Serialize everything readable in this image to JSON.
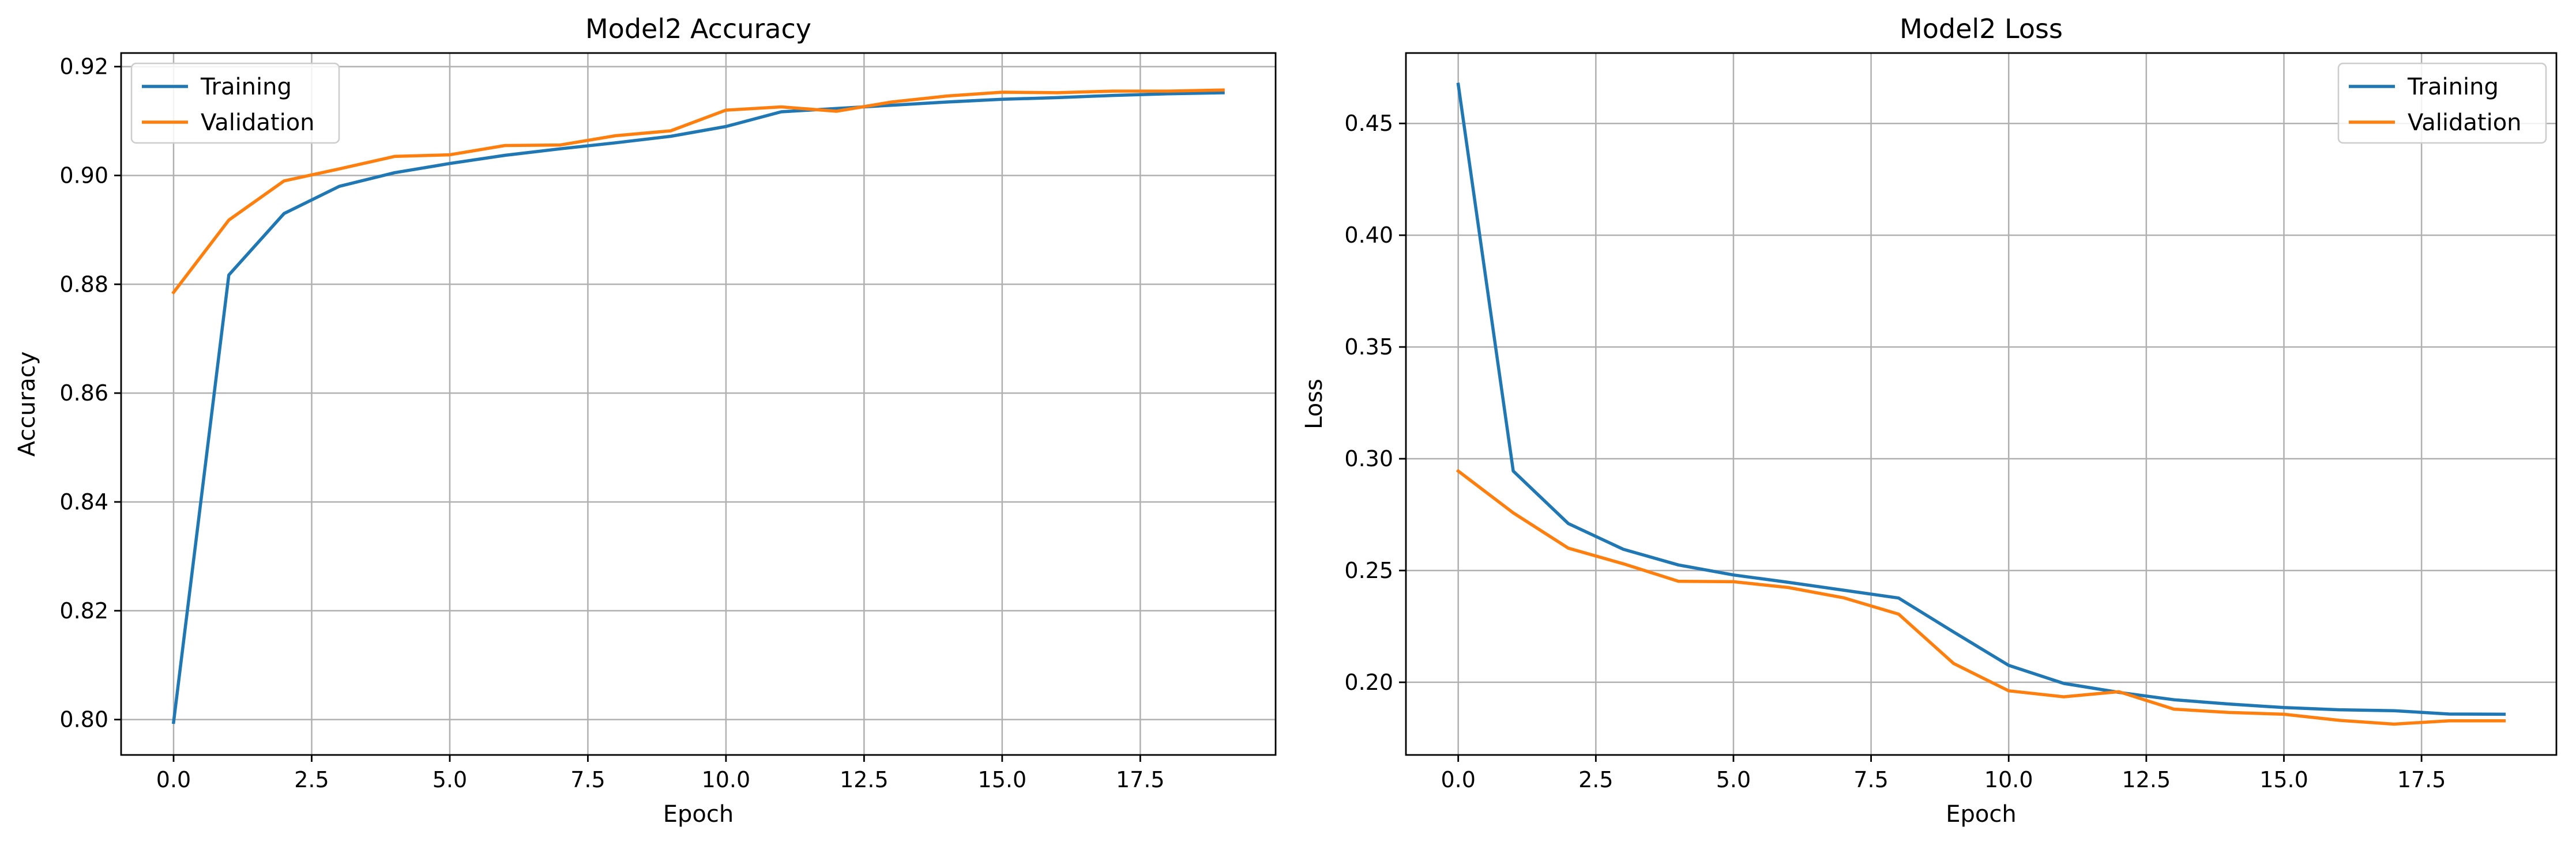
{
  "chart_data": [
    {
      "type": "line",
      "title": "Model2 Accuracy",
      "xlabel": "Epoch",
      "ylabel": "Accuracy",
      "xlim": [
        -0.95,
        19.95
      ],
      "ylim": [
        0.7935,
        0.9225
      ],
      "x_ticks": [
        0,
        2.5,
        5,
        7.5,
        10,
        12.5,
        15,
        17.5
      ],
      "x_tick_labels": [
        "0.0",
        "2.5",
        "5.0",
        "7.5",
        "10.0",
        "12.5",
        "15.0",
        "17.5"
      ],
      "y_ticks": [
        0.8,
        0.82,
        0.84,
        0.86,
        0.88,
        0.9,
        0.92
      ],
      "y_tick_labels": [
        "0.80",
        "0.82",
        "0.84",
        "0.86",
        "0.88",
        "0.90",
        "0.92"
      ],
      "grid": true,
      "legend_position": "upper-left",
      "x": [
        0,
        1,
        2,
        3,
        4,
        5,
        6,
        7,
        8,
        9,
        10,
        11,
        12,
        13,
        14,
        15,
        16,
        17,
        18,
        19
      ],
      "series": [
        {
          "name": "Training",
          "color": "#1f77b4",
          "values": [
            0.7995,
            0.8817,
            0.893,
            0.898,
            0.9005,
            0.9022,
            0.9037,
            0.9049,
            0.906,
            0.9072,
            0.909,
            0.9117,
            0.9123,
            0.9129,
            0.9135,
            0.914,
            0.9143,
            0.9147,
            0.915,
            0.9152
          ]
        },
        {
          "name": "Validation",
          "color": "#ff7f0e",
          "values": [
            0.8785,
            0.8918,
            0.899,
            0.9012,
            0.9035,
            0.9038,
            0.9055,
            0.9056,
            0.9073,
            0.9082,
            0.912,
            0.9126,
            0.9118,
            0.9135,
            0.9146,
            0.9153,
            0.9152,
            0.9155,
            0.9155,
            0.9157
          ]
        }
      ]
    },
    {
      "type": "line",
      "title": "Model2 Loss",
      "xlabel": "Epoch",
      "ylabel": "Loss",
      "xlim": [
        -0.95,
        19.95
      ],
      "ylim": [
        0.1675,
        0.4815
      ],
      "x_ticks": [
        0,
        2.5,
        5,
        7.5,
        10,
        12.5,
        15,
        17.5
      ],
      "x_tick_labels": [
        "0.0",
        "2.5",
        "5.0",
        "7.5",
        "10.0",
        "12.5",
        "15.0",
        "17.5"
      ],
      "y_ticks": [
        0.2,
        0.25,
        0.3,
        0.35,
        0.4,
        0.45
      ],
      "y_tick_labels": [
        "0.20",
        "0.25",
        "0.30",
        "0.35",
        "0.40",
        "0.45"
      ],
      "grid": true,
      "legend_position": "upper-right",
      "x": [
        0,
        1,
        2,
        3,
        4,
        5,
        6,
        7,
        8,
        9,
        10,
        11,
        12,
        13,
        14,
        15,
        16,
        17,
        18,
        19
      ],
      "series": [
        {
          "name": "Training",
          "color": "#1f77b4",
          "values": [
            0.4675,
            0.2945,
            0.271,
            0.2595,
            0.2525,
            0.248,
            0.2447,
            0.2412,
            0.2377,
            0.2225,
            0.2076,
            0.1995,
            0.1955,
            0.1922,
            0.1903,
            0.1887,
            0.1877,
            0.1873,
            0.1858,
            0.1857
          ]
        },
        {
          "name": "Validation",
          "color": "#ff7f0e",
          "values": [
            0.2945,
            0.2758,
            0.26,
            0.253,
            0.2452,
            0.245,
            0.2424,
            0.2378,
            0.2305,
            0.2084,
            0.1962,
            0.1935,
            0.1958,
            0.188,
            0.1865,
            0.1857,
            0.183,
            0.1813,
            0.1828,
            0.1828
          ]
        }
      ]
    }
  ]
}
